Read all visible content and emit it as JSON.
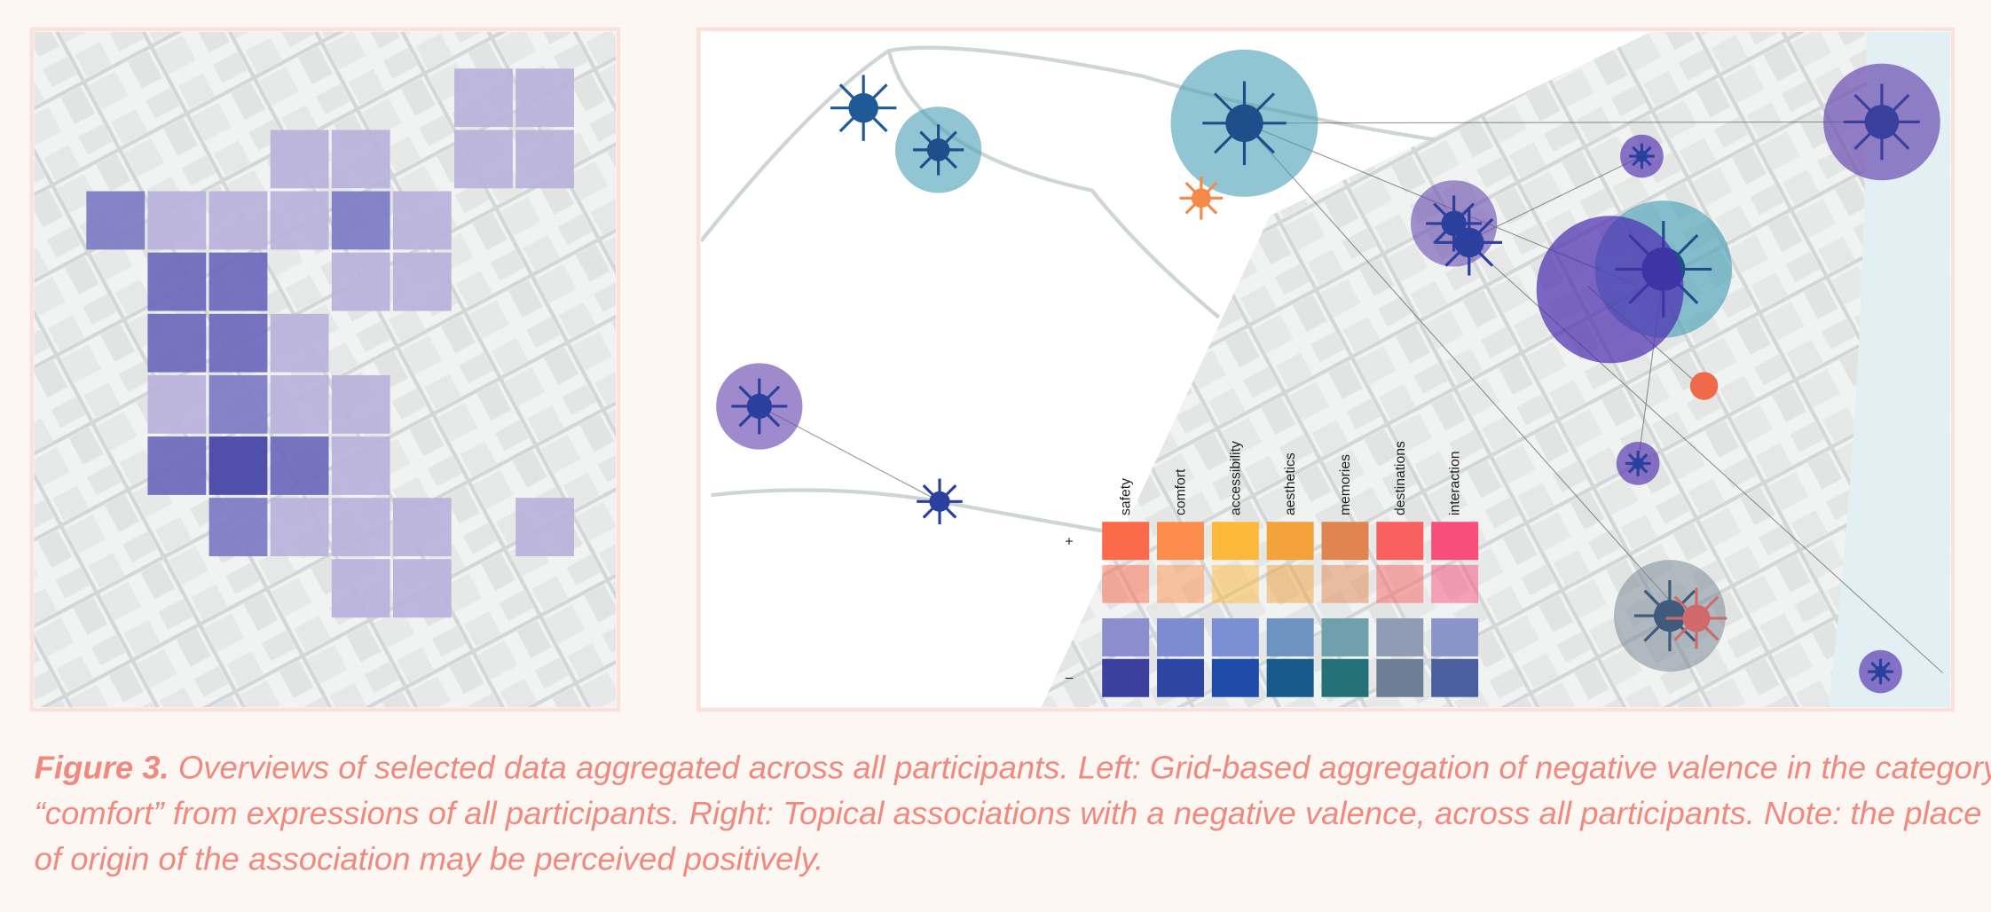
{
  "legend": {
    "columns": [
      "safety",
      "comfort",
      "accessibility",
      "aesthetics",
      "memories",
      "destinations",
      "interaction"
    ],
    "positive": "+",
    "negative": "–"
  },
  "caption": {
    "label": "Figure 3.",
    "lines": [
      " Overviews of selected data aggregated across all participants. Left: Grid-based aggregation of negative valence in the category",
      "“comfort” from expressions of all participants. Right: Topical associations with a negative valence, across all participants. Note: the place",
      "of origin of the association may be perceived positively."
    ]
  }
}
